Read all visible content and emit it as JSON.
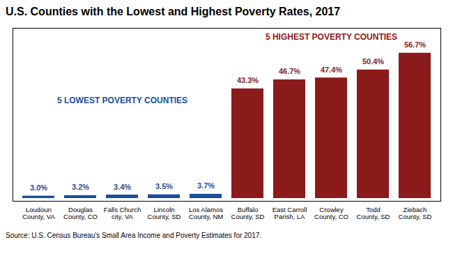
{
  "chart_data": {
    "type": "bar",
    "title": "U.S. Counties with the Lowest and Highest Poverty Rates, 2017",
    "categories": [
      "Loudoun\nCounty, VA",
      "Douglas\nCounty, CO",
      "Falls Church\ncity, VA",
      "Lincoln\nCounty, SD",
      "Los Alamos\nCounty, NM",
      "Buffalo\nCounty, SD",
      "East Carroll\nParish, LA",
      "Crowley\nCounty, CO",
      "Todd\nCounty, SD",
      "Ziebach\nCounty, SD"
    ],
    "values": [
      3.0,
      3.2,
      3.4,
      3.5,
      3.7,
      43.3,
      46.7,
      47.4,
      50.4,
      56.7
    ],
    "value_labels": [
      "3.0%",
      "3.2%",
      "3.4%",
      "3.5%",
      "3.7%",
      "43.3%",
      "46.7%",
      "47.4%",
      "50.4%",
      "56.7%"
    ],
    "colors": [
      "#1a4f9c",
      "#1a4f9c",
      "#1a4f9c",
      "#1a4f9c",
      "#1a4f9c",
      "#8b1a1a",
      "#8b1a1a",
      "#8b1a1a",
      "#8b1a1a",
      "#8b1a1a"
    ],
    "annotations": [
      {
        "text": "5 LOWEST POVERTY COUNTIES",
        "color": "#1a4f9c"
      },
      {
        "text": "5 HIGHEST POVERTY COUNTIES",
        "color": "#8b1a1a"
      }
    ],
    "source": "Source: U.S. Census Bureau's Small Area Income and Poverty Estimates for 2017.",
    "ylim": [
      0,
      65
    ],
    "tick_labels": "x",
    "data_labels": true,
    "grid": false
  }
}
